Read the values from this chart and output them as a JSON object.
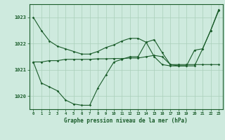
{
  "title": "Graphe pression niveau de la mer (hPa)",
  "background_color": "#ceeade",
  "grid_color": "#aacfba",
  "line_color": "#1a5c2a",
  "x_labels": [
    "0",
    "1",
    "2",
    "3",
    "4",
    "5",
    "6",
    "7",
    "8",
    "9",
    "10",
    "11",
    "12",
    "13",
    "14",
    "15",
    "16",
    "17",
    "18",
    "19",
    "20",
    "21",
    "22",
    "23"
  ],
  "ylim": [
    1019.5,
    1023.5
  ],
  "yticks": [
    1020,
    1021,
    1022,
    1023
  ],
  "series1": [
    1023.0,
    1022.5,
    1022.1,
    1021.9,
    1021.8,
    1021.7,
    1021.6,
    1021.6,
    1021.7,
    1021.85,
    1021.95,
    1022.1,
    1022.2,
    1022.2,
    1022.05,
    1021.5,
    1021.2,
    1021.15,
    1021.15,
    1021.15,
    1021.75,
    1021.8,
    1022.5,
    1023.25
  ],
  "series2": [
    1021.3,
    1021.3,
    1021.35,
    1021.35,
    1021.4,
    1021.4,
    1021.4,
    1021.4,
    1021.42,
    1021.42,
    1021.43,
    1021.43,
    1021.45,
    1021.45,
    1021.5,
    1021.55,
    1021.5,
    1021.2,
    1021.2,
    1021.2,
    1021.2,
    1021.2,
    1021.2,
    1021.2
  ],
  "series3": [
    1021.3,
    1020.5,
    1020.35,
    1020.2,
    1019.85,
    1019.7,
    1019.65,
    1019.65,
    1020.3,
    1020.8,
    1021.3,
    1021.4,
    1021.5,
    1021.5,
    1022.05,
    1022.15,
    1021.65,
    1021.2,
    1021.15,
    1021.15,
    1021.15,
    1021.8,
    1022.5,
    1023.3
  ]
}
